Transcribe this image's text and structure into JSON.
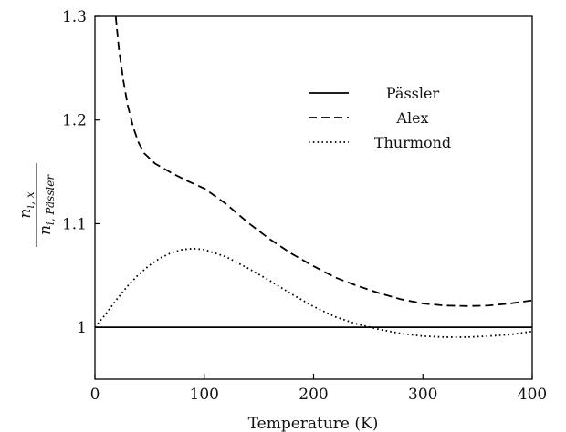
{
  "chart_data": {
    "type": "line",
    "xlabel": "Temperature (K)",
    "ylabel": {
      "numerator": "n",
      "numerator_sub": "i, x",
      "denominator": "n",
      "denominator_sub": "i, Pässler"
    },
    "xlim": [
      0,
      400
    ],
    "ylim": [
      0.95,
      1.3
    ],
    "x_ticks": [
      0,
      100,
      200,
      300,
      400
    ],
    "x_tick_labels": [
      "0",
      "100",
      "200",
      "300",
      "400"
    ],
    "y_ticks": [
      1.0,
      1.1,
      1.2,
      1.3
    ],
    "y_tick_labels": [
      "1",
      "1.1",
      "1.2",
      "1.3"
    ],
    "grid": false,
    "legend_position": "upper-right",
    "series": [
      {
        "name": "Pässler",
        "style": "solid",
        "x": [
          0,
          100,
          200,
          300,
          400
        ],
        "y": [
          1.0,
          1.0,
          1.0,
          1.0,
          1.0
        ]
      },
      {
        "name": "Alex",
        "style": "dashed",
        "x": [
          19,
          22,
          26,
          30,
          35,
          40,
          45,
          55,
          70,
          85,
          100,
          120,
          140,
          160,
          180,
          200,
          220,
          240,
          260,
          280,
          300,
          320,
          340,
          360,
          380,
          400
        ],
        "y": [
          1.3,
          1.268,
          1.238,
          1.214,
          1.193,
          1.178,
          1.168,
          1.158,
          1.149,
          1.141,
          1.134,
          1.119,
          1.101,
          1.085,
          1.071,
          1.059,
          1.048,
          1.04,
          1.033,
          1.027,
          1.023,
          1.021,
          1.0205,
          1.021,
          1.023,
          1.026
        ]
      },
      {
        "name": "Thurmond",
        "style": "dotted",
        "x": [
          0,
          10,
          20,
          30,
          40,
          50,
          60,
          70,
          80,
          90,
          100,
          120,
          140,
          160,
          180,
          200,
          220,
          240,
          260,
          280,
          300,
          320,
          340,
          360,
          380,
          400
        ],
        "y": [
          1.0,
          1.013,
          1.027,
          1.04,
          1.051,
          1.06,
          1.067,
          1.072,
          1.075,
          1.076,
          1.075,
          1.068,
          1.057,
          1.045,
          1.032,
          1.02,
          1.01,
          1.003,
          0.998,
          0.994,
          0.9915,
          0.9905,
          0.9905,
          0.9915,
          0.993,
          0.996
        ]
      }
    ]
  }
}
